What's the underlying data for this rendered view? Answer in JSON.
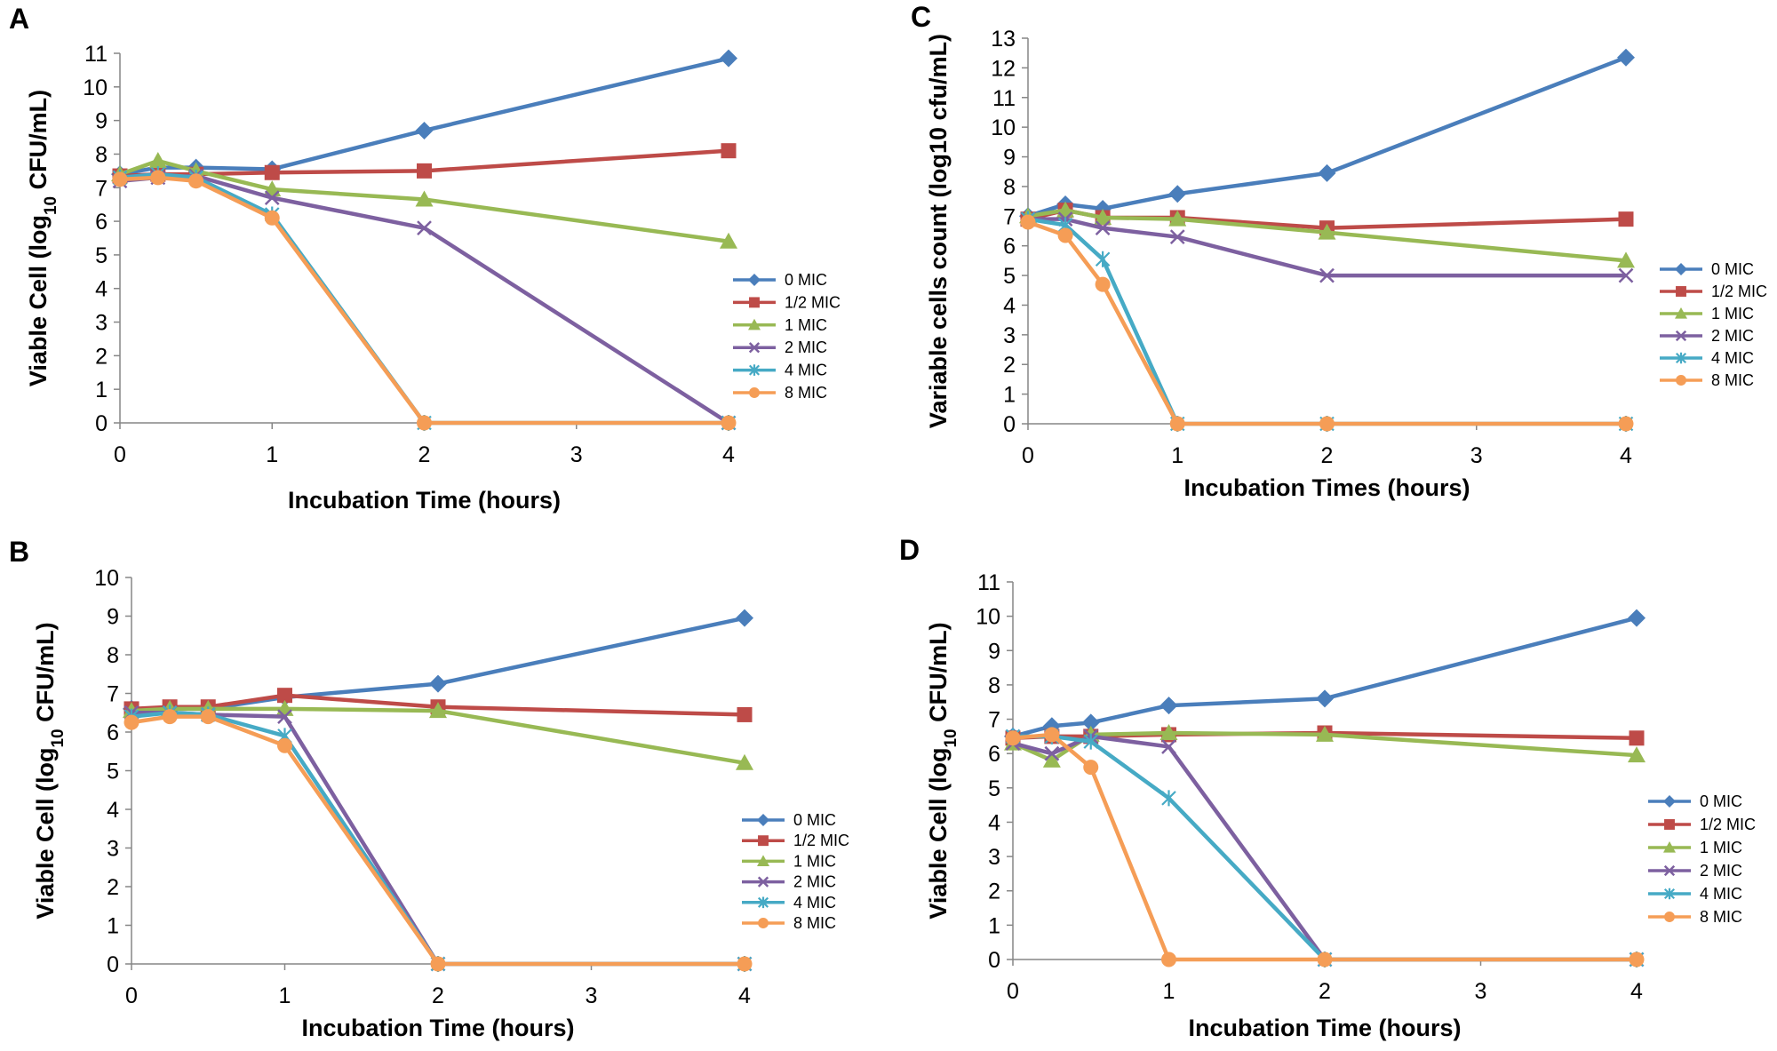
{
  "colors": {
    "0 MIC": "#4a7ebb",
    "1/2 MIC": "#be4b48",
    "1 MIC": "#98b954",
    "2 MIC": "#7d60a0",
    "4 MIC": "#46aac5",
    "8 MIC": "#f59d56"
  },
  "chart_data": [
    {
      "panel": "A",
      "type": "line",
      "xlabel": "Incubation Time (hours)",
      "ylabel_main": "Viable Cell (log",
      "ylabel_sub": "10",
      "ylabel_tail": " CFU/mL)",
      "ylim": [
        0,
        11
      ],
      "yticks": [
        "0",
        "1",
        "2",
        "3",
        "4",
        "5",
        "6",
        "7",
        "8",
        "9",
        "10",
        "11"
      ],
      "x_categories": [
        "0",
        "1",
        "2",
        "3",
        "4"
      ],
      "series": [
        {
          "name": "0 MIC",
          "marker": "diamond",
          "points": [
            [
              0,
              7.4
            ],
            [
              0.25,
              7.6
            ],
            [
              0.5,
              7.6
            ],
            [
              1,
              7.55
            ],
            [
              2,
              8.7
            ],
            [
              4,
              10.85
            ]
          ]
        },
        {
          "name": "1/2 MIC",
          "marker": "square",
          "points": [
            [
              0,
              7.35
            ],
            [
              0.25,
              7.4
            ],
            [
              0.5,
              7.4
            ],
            [
              1,
              7.45
            ],
            [
              2,
              7.5
            ],
            [
              4,
              8.1
            ]
          ]
        },
        {
          "name": "1 MIC",
          "marker": "triangle",
          "points": [
            [
              0,
              7.4
            ],
            [
              0.25,
              7.8
            ],
            [
              0.5,
              7.5
            ],
            [
              1,
              6.95
            ],
            [
              2,
              6.65
            ],
            [
              4,
              5.4
            ]
          ]
        },
        {
          "name": "2 MIC",
          "marker": "x",
          "points": [
            [
              0,
              7.2
            ],
            [
              0.25,
              7.3
            ],
            [
              0.5,
              7.35
            ],
            [
              1,
              6.7
            ],
            [
              2,
              5.8
            ],
            [
              4,
              0
            ]
          ]
        },
        {
          "name": "4 MIC",
          "marker": "asterisk",
          "points": [
            [
              0,
              7.3
            ],
            [
              0.25,
              7.4
            ],
            [
              0.5,
              7.3
            ],
            [
              1,
              6.2
            ],
            [
              2,
              0
            ],
            [
              4,
              0
            ]
          ]
        },
        {
          "name": "8 MIC",
          "marker": "circle",
          "points": [
            [
              0,
              7.25
            ],
            [
              0.25,
              7.3
            ],
            [
              0.5,
              7.2
            ],
            [
              1,
              6.1
            ],
            [
              2,
              0
            ],
            [
              4,
              0
            ]
          ]
        }
      ]
    },
    {
      "panel": "B",
      "type": "line",
      "xlabel": "Incubation Time (hours)",
      "ylabel_main": "Viable Cell (log",
      "ylabel_sub": "10",
      "ylabel_tail": " CFU/mL)",
      "ylim": [
        0,
        10
      ],
      "yticks": [
        "0",
        "1",
        "2",
        "3",
        "4",
        "5",
        "6",
        "7",
        "8",
        "9",
        "10"
      ],
      "x_categories": [
        "0",
        "1",
        "2",
        "3",
        "4"
      ],
      "series": [
        {
          "name": "0 MIC",
          "marker": "diamond",
          "points": [
            [
              0,
              6.6
            ],
            [
              0.25,
              6.6
            ],
            [
              0.5,
              6.6
            ],
            [
              1,
              6.9
            ],
            [
              2,
              7.25
            ],
            [
              4,
              8.95
            ]
          ]
        },
        {
          "name": "1/2 MIC",
          "marker": "square",
          "points": [
            [
              0,
              6.6
            ],
            [
              0.25,
              6.65
            ],
            [
              0.5,
              6.65
            ],
            [
              1,
              6.95
            ],
            [
              2,
              6.65
            ],
            [
              4,
              6.45
            ]
          ]
        },
        {
          "name": "1 MIC",
          "marker": "triangle",
          "points": [
            [
              0,
              6.55
            ],
            [
              0.25,
              6.6
            ],
            [
              0.5,
              6.6
            ],
            [
              1,
              6.6
            ],
            [
              2,
              6.55
            ],
            [
              4,
              5.2
            ]
          ]
        },
        {
          "name": "2 MIC",
          "marker": "x",
          "points": [
            [
              0,
              6.5
            ],
            [
              0.25,
              6.5
            ],
            [
              0.5,
              6.45
            ],
            [
              1,
              6.4
            ],
            [
              2,
              0
            ],
            [
              4,
              0
            ]
          ]
        },
        {
          "name": "4 MIC",
          "marker": "asterisk",
          "points": [
            [
              0,
              6.4
            ],
            [
              0.25,
              6.5
            ],
            [
              0.5,
              6.45
            ],
            [
              1,
              5.9
            ],
            [
              2,
              0
            ],
            [
              4,
              0
            ]
          ]
        },
        {
          "name": "8 MIC",
          "marker": "circle",
          "points": [
            [
              0,
              6.25
            ],
            [
              0.25,
              6.4
            ],
            [
              0.5,
              6.4
            ],
            [
              1,
              5.65
            ],
            [
              2,
              0
            ],
            [
              4,
              0
            ]
          ]
        }
      ]
    },
    {
      "panel": "C",
      "type": "line",
      "xlabel": "Incubation Times (hours)",
      "ylabel_main": "Variable cells count (log10 cfu/mL)",
      "ylabel_sub": "",
      "ylabel_tail": "",
      "ylim": [
        0,
        13
      ],
      "yticks": [
        "0",
        "1",
        "2",
        "3",
        "4",
        "5",
        "6",
        "7",
        "8",
        "9",
        "10",
        "11",
        "12",
        "13"
      ],
      "x_categories": [
        "0",
        "1",
        "2",
        "3",
        "4"
      ],
      "series": [
        {
          "name": "0 MIC",
          "marker": "diamond",
          "points": [
            [
              0,
              7.0
            ],
            [
              0.25,
              7.4
            ],
            [
              0.5,
              7.25
            ],
            [
              1,
              7.75
            ],
            [
              2,
              8.45
            ],
            [
              4,
              12.35
            ]
          ]
        },
        {
          "name": "1/2 MIC",
          "marker": "square",
          "points": [
            [
              0,
              6.9
            ],
            [
              0.25,
              7.2
            ],
            [
              0.5,
              6.95
            ],
            [
              1,
              6.95
            ],
            [
              2,
              6.6
            ],
            [
              4,
              6.9
            ]
          ]
        },
        {
          "name": "1 MIC",
          "marker": "triangle",
          "points": [
            [
              0,
              7.0
            ],
            [
              0.25,
              7.2
            ],
            [
              0.5,
              6.95
            ],
            [
              1,
              6.9
            ],
            [
              2,
              6.45
            ],
            [
              4,
              5.5
            ]
          ]
        },
        {
          "name": "2 MIC",
          "marker": "x",
          "points": [
            [
              0,
              6.9
            ],
            [
              0.25,
              6.9
            ],
            [
              0.5,
              6.6
            ],
            [
              1,
              6.3
            ],
            [
              2,
              5.0
            ],
            [
              4,
              5.0
            ]
          ]
        },
        {
          "name": "4 MIC",
          "marker": "asterisk",
          "points": [
            [
              0,
              6.9
            ],
            [
              0.25,
              6.7
            ],
            [
              0.5,
              5.55
            ],
            [
              1,
              0
            ],
            [
              2,
              0
            ],
            [
              4,
              0
            ]
          ]
        },
        {
          "name": "8 MIC",
          "marker": "circle",
          "points": [
            [
              0,
              6.8
            ],
            [
              0.25,
              6.35
            ],
            [
              0.5,
              4.7
            ],
            [
              1,
              0
            ],
            [
              2,
              0
            ],
            [
              4,
              0
            ]
          ]
        }
      ]
    },
    {
      "panel": "D",
      "type": "line",
      "xlabel": "Incubation Time (hours)",
      "ylabel_main": "Viable Cell (log",
      "ylabel_sub": "10",
      "ylabel_tail": " CFU/mL)",
      "ylim": [
        0,
        11
      ],
      "yticks": [
        "0",
        "1",
        "2",
        "3",
        "4",
        "5",
        "6",
        "7",
        "8",
        "9",
        "10",
        "11"
      ],
      "x_categories": [
        "0",
        "1",
        "2",
        "3",
        "4"
      ],
      "series": [
        {
          "name": "0 MIC",
          "marker": "diamond",
          "points": [
            [
              0,
              6.5
            ],
            [
              0.25,
              6.8
            ],
            [
              0.5,
              6.9
            ],
            [
              1,
              7.4
            ],
            [
              2,
              7.6
            ],
            [
              4,
              9.95
            ]
          ]
        },
        {
          "name": "1/2 MIC",
          "marker": "square",
          "points": [
            [
              0,
              6.45
            ],
            [
              0.25,
              6.5
            ],
            [
              0.5,
              6.5
            ],
            [
              1,
              6.55
            ],
            [
              2,
              6.6
            ],
            [
              4,
              6.45
            ]
          ]
        },
        {
          "name": "1 MIC",
          "marker": "triangle",
          "points": [
            [
              0,
              6.3
            ],
            [
              0.25,
              5.8
            ],
            [
              0.5,
              6.55
            ],
            [
              1,
              6.6
            ],
            [
              2,
              6.55
            ],
            [
              4,
              5.95
            ]
          ]
        },
        {
          "name": "2 MIC",
          "marker": "x",
          "points": [
            [
              0,
              6.3
            ],
            [
              0.25,
              6.0
            ],
            [
              0.5,
              6.5
            ],
            [
              1,
              6.2
            ],
            [
              2,
              0
            ],
            [
              4,
              0
            ]
          ]
        },
        {
          "name": "4 MIC",
          "marker": "asterisk",
          "points": [
            [
              0,
              6.5
            ],
            [
              0.25,
              6.5
            ],
            [
              0.5,
              6.35
            ],
            [
              1,
              4.7
            ],
            [
              2,
              0
            ],
            [
              4,
              0
            ]
          ]
        },
        {
          "name": "8 MIC",
          "marker": "circle",
          "points": [
            [
              0,
              6.45
            ],
            [
              0.25,
              6.55
            ],
            [
              0.5,
              5.6
            ],
            [
              1,
              0
            ],
            [
              2,
              0
            ],
            [
              4,
              0
            ]
          ]
        }
      ]
    }
  ]
}
